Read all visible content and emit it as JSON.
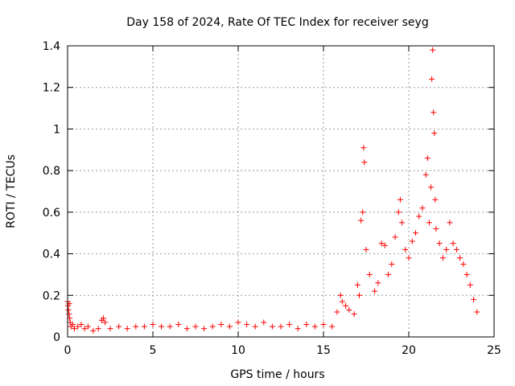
{
  "chart_data": {
    "type": "scatter",
    "title": "Day 158 of 2024, Rate Of TEC Index for receiver seyg",
    "xlabel": "GPS time / hours",
    "ylabel": "ROTI / TECUs",
    "xlim": [
      0,
      25
    ],
    "ylim": [
      0,
      1.4
    ],
    "xticks": [
      0,
      5,
      10,
      15,
      20,
      25
    ],
    "yticks": [
      0,
      0.2,
      0.4,
      0.6,
      0.8,
      1,
      1.2,
      1.4
    ],
    "xtick_labels": [
      "0",
      "5",
      "10",
      "15",
      "20",
      "25"
    ],
    "ytick_labels": [
      "0",
      "0.2",
      "0.4",
      "0.6",
      "0.8",
      "1",
      "1.2",
      "1.4"
    ],
    "grid": true,
    "marker": "plus",
    "color": "#ff0000",
    "points": [
      [
        0.0,
        0.17
      ],
      [
        0.02,
        0.15
      ],
      [
        0.05,
        0.13
      ],
      [
        0.08,
        0.11
      ],
      [
        0.1,
        0.16
      ],
      [
        0.12,
        0.09
      ],
      [
        0.15,
        0.07
      ],
      [
        0.2,
        0.05
      ],
      [
        0.3,
        0.06
      ],
      [
        0.4,
        0.04
      ],
      [
        0.6,
        0.05
      ],
      [
        0.8,
        0.06
      ],
      [
        1.0,
        0.04
      ],
      [
        1.2,
        0.05
      ],
      [
        1.5,
        0.03
      ],
      [
        1.8,
        0.04
      ],
      [
        2.0,
        0.08
      ],
      [
        2.1,
        0.09
      ],
      [
        2.2,
        0.07
      ],
      [
        2.5,
        0.04
      ],
      [
        3.0,
        0.05
      ],
      [
        3.5,
        0.04
      ],
      [
        4.0,
        0.05
      ],
      [
        4.5,
        0.05
      ],
      [
        5.0,
        0.06
      ],
      [
        5.5,
        0.05
      ],
      [
        6.0,
        0.05
      ],
      [
        6.5,
        0.06
      ],
      [
        7.0,
        0.04
      ],
      [
        7.5,
        0.05
      ],
      [
        8.0,
        0.04
      ],
      [
        8.5,
        0.05
      ],
      [
        9.0,
        0.06
      ],
      [
        9.5,
        0.05
      ],
      [
        10.0,
        0.07
      ],
      [
        10.5,
        0.06
      ],
      [
        11.0,
        0.05
      ],
      [
        11.5,
        0.07
      ],
      [
        12.0,
        0.05
      ],
      [
        12.5,
        0.05
      ],
      [
        13.0,
        0.06
      ],
      [
        13.5,
        0.04
      ],
      [
        14.0,
        0.06
      ],
      [
        14.5,
        0.05
      ],
      [
        15.0,
        0.06
      ],
      [
        15.5,
        0.05
      ],
      [
        15.8,
        0.12
      ],
      [
        16.0,
        0.2
      ],
      [
        16.1,
        0.17
      ],
      [
        16.3,
        0.15
      ],
      [
        16.5,
        0.13
      ],
      [
        16.8,
        0.11
      ],
      [
        17.0,
        0.25
      ],
      [
        17.1,
        0.2
      ],
      [
        17.2,
        0.56
      ],
      [
        17.3,
        0.6
      ],
      [
        17.35,
        0.91
      ],
      [
        17.4,
        0.84
      ],
      [
        17.5,
        0.42
      ],
      [
        17.7,
        0.3
      ],
      [
        18.0,
        0.22
      ],
      [
        18.2,
        0.26
      ],
      [
        18.4,
        0.45
      ],
      [
        18.6,
        0.44
      ],
      [
        18.8,
        0.3
      ],
      [
        19.0,
        0.35
      ],
      [
        19.2,
        0.48
      ],
      [
        19.4,
        0.6
      ],
      [
        19.5,
        0.66
      ],
      [
        19.6,
        0.55
      ],
      [
        19.8,
        0.42
      ],
      [
        20.0,
        0.38
      ],
      [
        20.2,
        0.46
      ],
      [
        20.4,
        0.5
      ],
      [
        20.6,
        0.58
      ],
      [
        20.8,
        0.62
      ],
      [
        21.0,
        0.78
      ],
      [
        21.1,
        0.86
      ],
      [
        21.2,
        0.55
      ],
      [
        21.3,
        0.72
      ],
      [
        21.35,
        1.24
      ],
      [
        21.4,
        1.38
      ],
      [
        21.45,
        1.08
      ],
      [
        21.5,
        0.98
      ],
      [
        21.55,
        0.66
      ],
      [
        21.6,
        0.52
      ],
      [
        21.8,
        0.45
      ],
      [
        22.0,
        0.38
      ],
      [
        22.2,
        0.42
      ],
      [
        22.4,
        0.55
      ],
      [
        22.6,
        0.45
      ],
      [
        22.8,
        0.42
      ],
      [
        23.0,
        0.38
      ],
      [
        23.2,
        0.35
      ],
      [
        23.4,
        0.3
      ],
      [
        23.6,
        0.25
      ],
      [
        23.8,
        0.18
      ],
      [
        24.0,
        0.12
      ]
    ]
  }
}
